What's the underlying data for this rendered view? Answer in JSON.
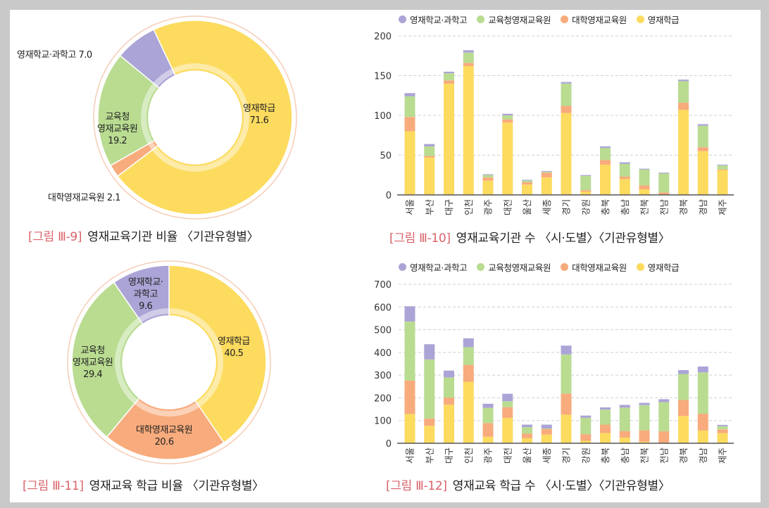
{
  "colors": {
    "영재학교·과학고": "#aba4d6",
    "교육청영재교육원": "#b9dc91",
    "대학영재교육원": "#f8ab7c",
    "영재학급": "#fcdb5f"
  },
  "chart_data": [
    {
      "type": "pie",
      "variant": "donut",
      "caption_num": "[그림 Ⅲ-9]",
      "caption": "영재교육기관 비율 〈기관유형별〉",
      "slices": [
        {
          "name": "영재학급",
          "value": 71.6,
          "label_lines": [
            "영재학급"
          ],
          "value_text": "71.6"
        },
        {
          "name": "대학영재교육원",
          "value": 2.1,
          "label_lines": [
            "대학영재교육원"
          ],
          "value_text": "2.1"
        },
        {
          "name": "교육청영재교육원",
          "value": 19.2,
          "label_lines": [
            "교육청",
            "영재교육원"
          ],
          "value_text": "19.2"
        },
        {
          "name": "영재학교·과학고",
          "value": 7.0,
          "label_lines": [
            "영재학교·과학고"
          ],
          "value_text": "7.0"
        }
      ]
    },
    {
      "type": "bar",
      "stacked": true,
      "caption_num": "[그림 Ⅲ-10]",
      "caption": "영재교육기관 수 〈시·도별〉〈기관유형별〉",
      "legend": [
        "영재학교·과학고",
        "교육청영재교육원",
        "대학영재교육원",
        "영재학급"
      ],
      "legend_position": "top",
      "categories": [
        "서울",
        "부산",
        "대구",
        "인천",
        "광주",
        "대전",
        "울산",
        "세종",
        "경기",
        "강원",
        "충북",
        "충남",
        "전북",
        "전남",
        "경북",
        "경남",
        "제주"
      ],
      "ylim": [
        0,
        200
      ],
      "yticks": [
        0,
        50,
        100,
        150,
        200
      ],
      "grid": true,
      "series": [
        {
          "name": "영재학급",
          "values": [
            80,
            47,
            140,
            162,
            18,
            91,
            13,
            22,
            103,
            4,
            38,
            20,
            7,
            0,
            107,
            55,
            31
          ]
        },
        {
          "name": "대학영재교육원",
          "values": [
            18,
            2,
            4,
            4,
            4,
            4,
            3,
            6,
            9,
            2,
            6,
            3,
            5,
            3,
            9,
            5,
            1
          ]
        },
        {
          "name": "교육청영재교육원",
          "values": [
            26,
            12,
            9,
            13,
            3,
            5,
            2,
            1,
            28,
            18,
            15,
            16,
            20,
            24,
            27,
            27,
            5
          ]
        },
        {
          "name": "영재학교·과학고",
          "values": [
            4,
            3,
            2,
            3,
            1,
            2,
            1,
            1,
            2,
            1,
            2,
            2,
            1,
            1,
            2,
            2,
            1
          ]
        }
      ]
    },
    {
      "type": "pie",
      "variant": "donut",
      "caption_num": "[그림 Ⅲ-11]",
      "caption": "영재교육 학급 비율 〈기관유형별〉",
      "slices": [
        {
          "name": "영재학급",
          "value": 40.5,
          "label_lines": [
            "영재학급"
          ],
          "value_text": "40.5"
        },
        {
          "name": "대학영재교육원",
          "value": 20.6,
          "label_lines": [
            "대학영재교육원"
          ],
          "value_text": "20.6"
        },
        {
          "name": "교육청영재교육원",
          "value": 29.4,
          "label_lines": [
            "교육청",
            "영재교육원"
          ],
          "value_text": "29.4"
        },
        {
          "name": "영재학교·과학고",
          "value": 9.6,
          "label_lines": [
            "영재학교·",
            "과학고"
          ],
          "value_text": "9.6"
        }
      ]
    },
    {
      "type": "bar",
      "stacked": true,
      "caption_num": "[그림 Ⅲ-12]",
      "caption": "영재교육 학급 수 〈시·도별〉〈기관유형별〉",
      "legend": [
        "영재학교·과학고",
        "교육청영재교육원",
        "대학영재교육원",
        "영재학급"
      ],
      "legend_position": "top",
      "categories": [
        "서울",
        "부산",
        "대구",
        "인천",
        "광주",
        "대전",
        "울산",
        "세종",
        "경기",
        "강원",
        "충북",
        "충남",
        "전북",
        "전남",
        "경북",
        "경남",
        "제주"
      ],
      "ylim": [
        0,
        700
      ],
      "yticks": [
        0,
        100,
        200,
        300,
        400,
        500,
        600,
        700
      ],
      "grid": true,
      "series": [
        {
          "name": "영재학급",
          "values": [
            129,
            77,
            170,
            271,
            29,
            112,
            22,
            38,
            126,
            11,
            45,
            25,
            7,
            0,
            120,
            56,
            45
          ]
        },
        {
          "name": "대학영재교육원",
          "values": [
            147,
            32,
            31,
            74,
            60,
            47,
            21,
            25,
            93,
            29,
            37,
            29,
            50,
            53,
            71,
            74,
            16
          ]
        },
        {
          "name": "교육청영재교육원",
          "values": [
            260,
            260,
            89,
            78,
            67,
            26,
            28,
            2,
            172,
            72,
            66,
            103,
            111,
            128,
            114,
            182,
            14
          ]
        },
        {
          "name": "영재학교·과학고",
          "values": [
            67,
            67,
            30,
            39,
            18,
            33,
            11,
            17,
            39,
            10,
            10,
            12,
            10,
            13,
            17,
            26,
            6
          ]
        }
      ]
    }
  ]
}
